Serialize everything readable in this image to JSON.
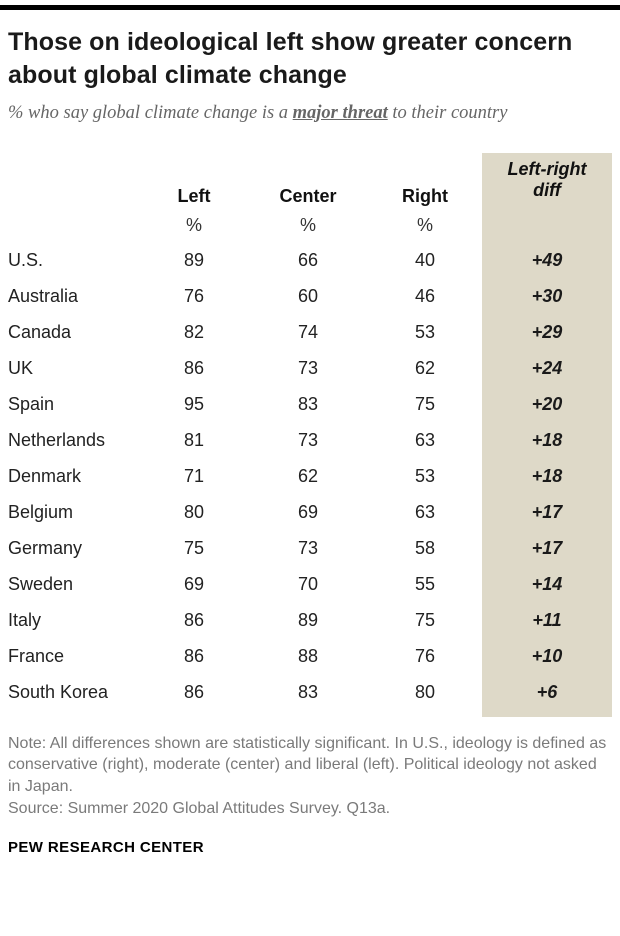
{
  "header": {
    "title": "Those on ideological left show greater concern about global climate change",
    "subtitle_prefix": "% who say global climate change is a ",
    "subtitle_emphasis": "major threat",
    "subtitle_suffix": " to their country"
  },
  "colors": {
    "diff_column_bg": "#ded9c8",
    "top_rule": "#000000"
  },
  "table": {
    "col_headers": [
      "Left",
      "Center",
      "Right"
    ],
    "diff_header": "Left-right diff",
    "unit_left": "%",
    "unit_center": "%",
    "unit_right": "%",
    "rows": [
      {
        "country": "U.S.",
        "left": "89",
        "center": "66",
        "right": "40",
        "diff": "+49"
      },
      {
        "country": "Australia",
        "left": "76",
        "center": "60",
        "right": "46",
        "diff": "+30"
      },
      {
        "country": "Canada",
        "left": "82",
        "center": "74",
        "right": "53",
        "diff": "+29"
      },
      {
        "country": "UK",
        "left": "86",
        "center": "73",
        "right": "62",
        "diff": "+24"
      },
      {
        "country": "Spain",
        "left": "95",
        "center": "83",
        "right": "75",
        "diff": "+20"
      },
      {
        "country": "Netherlands",
        "left": "81",
        "center": "73",
        "right": "63",
        "diff": "+18"
      },
      {
        "country": "Denmark",
        "left": "71",
        "center": "62",
        "right": "53",
        "diff": "+18"
      },
      {
        "country": "Belgium",
        "left": "80",
        "center": "69",
        "right": "63",
        "diff": "+17"
      },
      {
        "country": "Germany",
        "left": "75",
        "center": "73",
        "right": "58",
        "diff": "+17"
      },
      {
        "country": "Sweden",
        "left": "69",
        "center": "70",
        "right": "55",
        "diff": "+14"
      },
      {
        "country": "Italy",
        "left": "86",
        "center": "89",
        "right": "75",
        "diff": "+11"
      },
      {
        "country": "France",
        "left": "86",
        "center": "88",
        "right": "76",
        "diff": "+10"
      },
      {
        "country": "South Korea",
        "left": "86",
        "center": "83",
        "right": "80",
        "diff": "+6"
      }
    ]
  },
  "footer": {
    "note": "Note: All differences shown are statistically significant. In U.S., ideology is defined as conservative (right), moderate (center) and liberal (left). Political ideology not asked in Japan.",
    "source": "Source: Summer 2020 Global Attitudes Survey. Q13a.",
    "brand": "PEW RESEARCH CENTER"
  },
  "chart_data": {
    "type": "table",
    "title": "Those on ideological left show greater concern about global climate change",
    "subtitle": "% who say global climate change is a major threat to their country",
    "categories": [
      "U.S.",
      "Australia",
      "Canada",
      "UK",
      "Spain",
      "Netherlands",
      "Denmark",
      "Belgium",
      "Germany",
      "Sweden",
      "Italy",
      "France",
      "South Korea"
    ],
    "series": [
      {
        "name": "Left",
        "values": [
          89,
          76,
          82,
          86,
          95,
          81,
          71,
          80,
          75,
          69,
          86,
          86,
          86
        ]
      },
      {
        "name": "Center",
        "values": [
          66,
          60,
          74,
          73,
          83,
          73,
          62,
          69,
          73,
          70,
          89,
          88,
          83
        ]
      },
      {
        "name": "Right",
        "values": [
          40,
          46,
          53,
          62,
          75,
          63,
          53,
          63,
          58,
          55,
          75,
          76,
          80
        ]
      },
      {
        "name": "Left-right diff",
        "values": [
          49,
          30,
          29,
          24,
          20,
          18,
          18,
          17,
          17,
          14,
          11,
          10,
          6
        ]
      }
    ],
    "unit": "%",
    "note": "All differences shown are statistically significant. In U.S., ideology is defined as conservative (right), moderate (center) and liberal (left). Political ideology not asked in Japan.",
    "source": "Summer 2020 Global Attitudes Survey. Q13a."
  }
}
